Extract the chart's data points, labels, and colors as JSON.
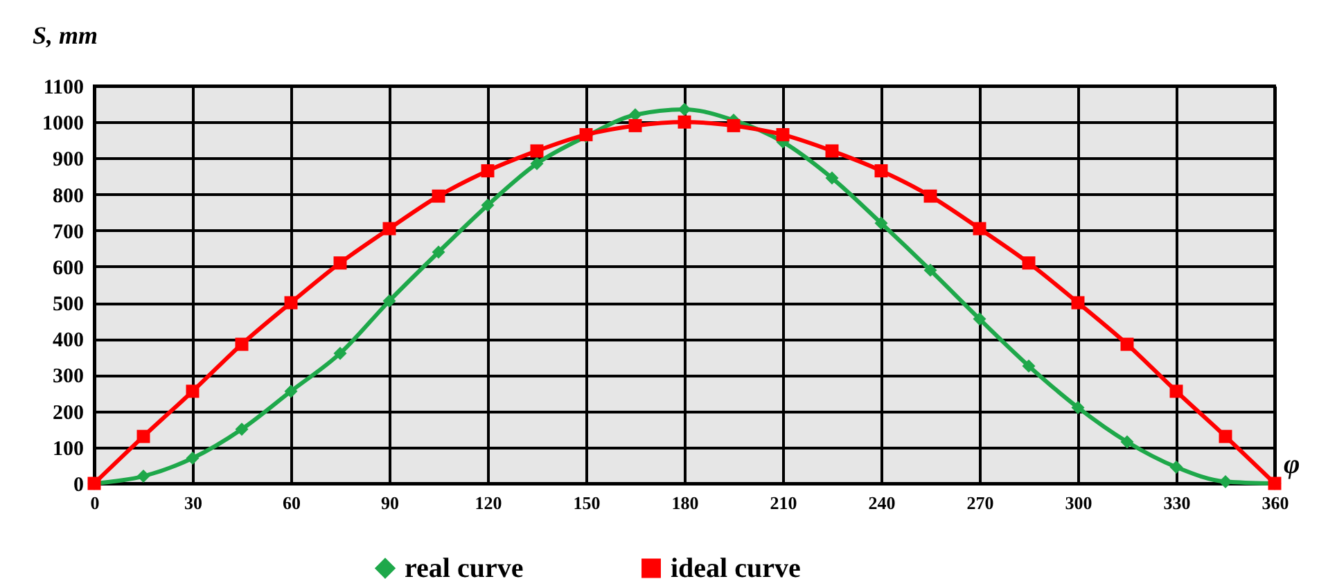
{
  "chart_data": {
    "type": "line",
    "xlabel": "φ",
    "ylabel": "S, mm",
    "x": [
      0,
      15,
      30,
      45,
      60,
      75,
      90,
      105,
      120,
      135,
      150,
      165,
      180,
      195,
      210,
      225,
      240,
      255,
      270,
      285,
      300,
      315,
      330,
      345,
      360
    ],
    "series": [
      {
        "name": "real curve",
        "color": "#1ea84a",
        "marker": "diamond",
        "values": [
          0,
          20,
          70,
          150,
          255,
          360,
          505,
          640,
          770,
          885,
          960,
          1020,
          1035,
          1005,
          945,
          845,
          720,
          590,
          455,
          325,
          210,
          115,
          45,
          5,
          0
        ]
      },
      {
        "name": "ideal curve",
        "color": "#ff0000",
        "marker": "square",
        "values": [
          0,
          130,
          255,
          385,
          500,
          610,
          705,
          795,
          865,
          920,
          965,
          990,
          1000,
          990,
          965,
          920,
          865,
          795,
          705,
          610,
          500,
          385,
          255,
          130,
          0
        ]
      }
    ],
    "xlim": [
      0,
      360
    ],
    "xticks": [
      0,
      30,
      60,
      90,
      120,
      150,
      180,
      210,
      240,
      270,
      300,
      330,
      360
    ],
    "ylim": [
      0,
      1100
    ],
    "yticks": [
      0,
      100,
      200,
      300,
      400,
      500,
      600,
      700,
      800,
      900,
      1000,
      1100
    ],
    "grid": true,
    "legend": "bottom",
    "line_style": "solid"
  }
}
